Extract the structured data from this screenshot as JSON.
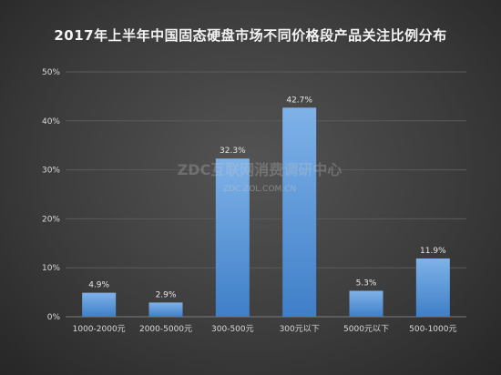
{
  "chart_data": {
    "type": "bar",
    "title": "2017年上半年中国固态硬盘市场不同价格段产品关注比例分布",
    "categories": [
      "1000-2000元",
      "2000-5000元",
      "300-500元",
      "300元以下",
      "5000元以下",
      "500-1000元"
    ],
    "values": [
      4.9,
      2.9,
      32.3,
      42.7,
      5.3,
      11.9
    ],
    "data_labels": [
      "4.9%",
      "2.9%",
      "32.3%",
      "42.7%",
      "5.3%",
      "11.9%"
    ],
    "y_ticks": [
      "0%",
      "10%",
      "20%",
      "30%",
      "40%",
      "50%"
    ],
    "ylim": [
      0,
      50
    ],
    "xlabel": "",
    "ylabel": "",
    "grid": true,
    "legend": "none",
    "colors": {
      "bar_top": "#7fb2e8",
      "bar_bottom": "#3f7fc8",
      "grid": "#5a5a5a",
      "text": "#d9d9d9"
    }
  },
  "watermark": {
    "main": "ZDC互联网消费调研中心",
    "sub": "ZDC.ZOL.COM.CN"
  }
}
